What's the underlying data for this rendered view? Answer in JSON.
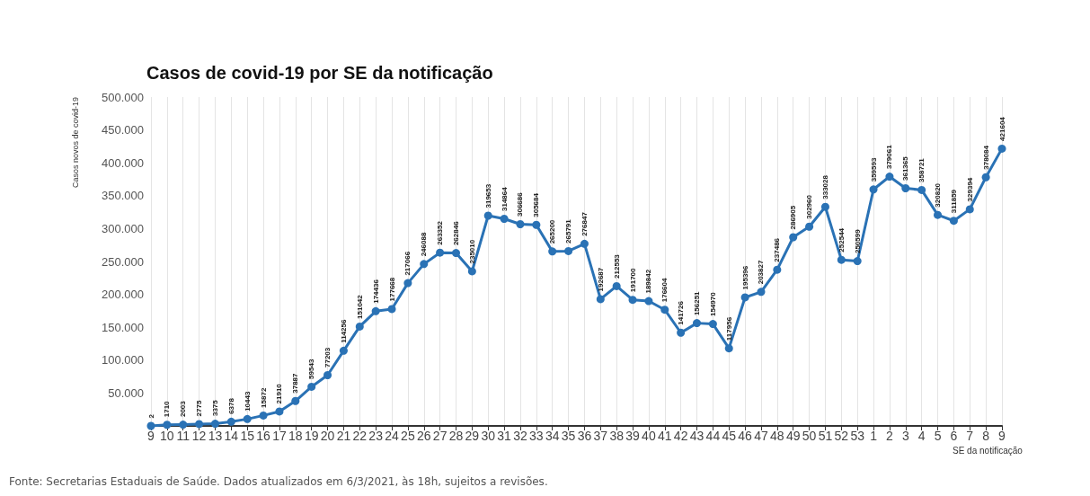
{
  "chart_data": {
    "type": "line",
    "title": "Casos de covid-19 por SE da notificação",
    "xlabel": "SE da notificação",
    "ylabel": "Casos novos de covid-19",
    "annotations": [
      "Fonte: Secretarias Estaduais de Saúde. Dados atualizados em 6/3/2021, às 18h, sujeitos a revisões."
    ],
    "categories": [
      "9",
      "10",
      "11",
      "12",
      "13",
      "14",
      "15",
      "16",
      "17",
      "18",
      "19",
      "20",
      "21",
      "22",
      "23",
      "24",
      "25",
      "26",
      "27",
      "28",
      "29",
      "30",
      "31",
      "32",
      "33",
      "34",
      "35",
      "36",
      "37",
      "38",
      "39",
      "40",
      "41",
      "42",
      "43",
      "44",
      "45",
      "46",
      "47",
      "48",
      "49",
      "50",
      "51",
      "52",
      "53",
      "1",
      "2",
      "3",
      "4",
      "5",
      "6",
      "7",
      "8",
      "9"
    ],
    "series": [
      {
        "color": "#2a72b5",
        "values": [
          2,
          1710,
          2003,
          2775,
          3375,
          6378,
          10443,
          15872,
          21910,
          37887,
          59543,
          77203,
          114256,
          151042,
          174436,
          177668,
          217066,
          246088,
          263352,
          262846,
          235010,
          319653,
          314864,
          306686,
          305684,
          265200,
          265791,
          276847,
          192687,
          212553,
          191700,
          189842,
          176604,
          141726,
          156251,
          154970,
          117956,
          195396,
          203827,
          237486,
          286905,
          302960,
          333028,
          252544,
          250599,
          359593,
          379061,
          361365,
          358721,
          320820,
          311859,
          329394,
          378084,
          421604
        ]
      }
    ],
    "ylim": [
      0,
      500000
    ],
    "yticks": [
      {
        "value": 0,
        "label": null
      },
      {
        "value": 50000,
        "label": "50.000"
      },
      {
        "value": 100000,
        "label": "100.000"
      },
      {
        "value": 150000,
        "label": "150.000"
      },
      {
        "value": 200000,
        "label": "200.000"
      },
      {
        "value": 250000,
        "label": "250.000"
      },
      {
        "value": 300000,
        "label": "300.000"
      },
      {
        "value": 350000,
        "label": "350.000"
      },
      {
        "value": 400000,
        "label": "400.000"
      },
      {
        "value": 450000,
        "label": "450.000"
      },
      {
        "value": 500000,
        "label": "500.000"
      }
    ],
    "grid": "x",
    "marker": "circle",
    "line_style": "solid",
    "data_labels": true
  }
}
